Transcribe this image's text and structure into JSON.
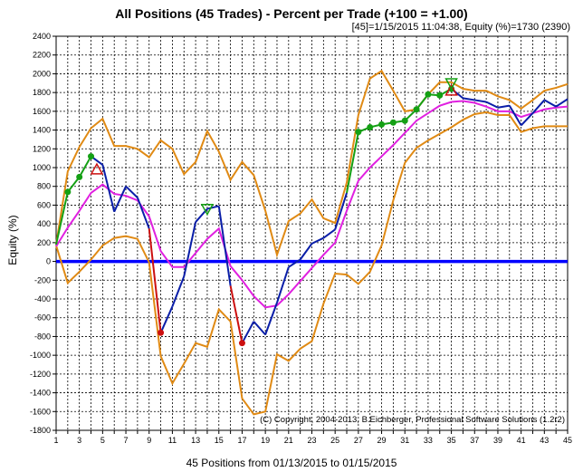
{
  "chart_data": {
    "type": "line",
    "title": "All Positions (45 Trades) - Percent per Trade (+100 = +1.00)",
    "subtitle": "[45]=1/15/2015 11:04:38,   Equity (%)=1730 (2390)",
    "xlabel": "45 Positions from 01/13/2015 to 01/15/2015",
    "ylabel": "Equity (%)",
    "copyright": "(C) Copyright, 2004-2013, B.Eichberger, Professional Software Solutions (1.2r2)",
    "xlim": [
      1,
      45
    ],
    "ylim": [
      -1800,
      2400
    ],
    "x_ticks": [
      1,
      3,
      5,
      7,
      9,
      11,
      13,
      15,
      17,
      19,
      21,
      23,
      25,
      27,
      29,
      31,
      33,
      35,
      37,
      39,
      41,
      43,
      45
    ],
    "y_ticks": [
      -1800,
      -1600,
      -1400,
      -1200,
      -1000,
      -800,
      -600,
      -400,
      -200,
      0,
      200,
      400,
      600,
      800,
      1000,
      1200,
      1400,
      1600,
      1800,
      2000,
      2200,
      2400
    ],
    "grid": true,
    "colors": {
      "equity": "#0a1ea8",
      "equity_up": "#14a014",
      "equity_down": "#cc1010",
      "moving_average": "#e020e0",
      "bands": "#e08a14",
      "zero_line": "#0000ff",
      "grid": "#000000"
    },
    "x": [
      1,
      2,
      3,
      4,
      5,
      6,
      7,
      8,
      9,
      10,
      11,
      12,
      13,
      14,
      15,
      16,
      17,
      18,
      19,
      20,
      21,
      22,
      23,
      24,
      25,
      26,
      27,
      28,
      29,
      30,
      31,
      32,
      33,
      34,
      35,
      36,
      37,
      38,
      39,
      40,
      41,
      42,
      43,
      44,
      45
    ],
    "series": [
      {
        "role": "equity",
        "values": [
          180,
          740,
          900,
          1120,
          1030,
          530,
          800,
          680,
          350,
          -760,
          -480,
          -160,
          420,
          560,
          590,
          -260,
          -870,
          -640,
          -780,
          -440,
          -60,
          20,
          190,
          250,
          340,
          730,
          1380,
          1430,
          1460,
          1480,
          1500,
          1620,
          1780,
          1770,
          1840,
          1740,
          1720,
          1700,
          1640,
          1660,
          1450,
          1580,
          1720,
          1650,
          1730
        ]
      },
      {
        "role": "moving_average",
        "values": [
          160,
          360,
          540,
          730,
          820,
          720,
          700,
          650,
          480,
          110,
          -60,
          -60,
          90,
          240,
          350,
          -50,
          -200,
          -370,
          -490,
          -470,
          -350,
          -210,
          -70,
          70,
          200,
          540,
          860,
          1000,
          1120,
          1240,
          1370,
          1500,
          1580,
          1660,
          1700,
          1710,
          1690,
          1650,
          1600,
          1600,
          1540,
          1580,
          1620,
          1640,
          1650
        ]
      },
      {
        "role": "upper_band",
        "values": [
          180,
          960,
          1220,
          1420,
          1520,
          1230,
          1230,
          1200,
          1110,
          1290,
          1200,
          930,
          1060,
          1390,
          1170,
          870,
          1060,
          920,
          540,
          70,
          430,
          510,
          660,
          460,
          410,
          840,
          1560,
          1950,
          2030,
          1820,
          1600,
          1620,
          1780,
          1910,
          1910,
          1840,
          1820,
          1820,
          1760,
          1720,
          1630,
          1720,
          1820,
          1850,
          1890
        ]
      },
      {
        "role": "lower_band",
        "values": [
          170,
          -230,
          -110,
          20,
          170,
          250,
          270,
          240,
          -10,
          -1010,
          -1300,
          -1090,
          -870,
          -910,
          -510,
          -640,
          -1460,
          -1630,
          -1600,
          -990,
          -1060,
          -930,
          -850,
          -450,
          -130,
          -140,
          -240,
          -110,
          170,
          650,
          1050,
          1210,
          1290,
          1360,
          1430,
          1510,
          1570,
          1590,
          1560,
          1560,
          1380,
          1420,
          1440,
          1440,
          1440
        ]
      }
    ],
    "markers": [
      {
        "type": "circle",
        "color": "#14a014",
        "x": [
          2,
          3,
          4,
          27,
          28,
          29,
          30,
          31,
          32,
          33,
          34,
          35
        ]
      },
      {
        "type": "circle",
        "color": "#cc1010",
        "x": [
          10,
          17
        ]
      },
      {
        "type": "triangle-up",
        "color": "#cc1010",
        "at": [
          [
            4.5,
            980
          ],
          [
            35,
            1820
          ]
        ]
      },
      {
        "type": "triangle-down",
        "color": "#14a014",
        "at": [
          [
            14,
            560
          ],
          [
            35,
            1900
          ]
        ]
      }
    ]
  }
}
